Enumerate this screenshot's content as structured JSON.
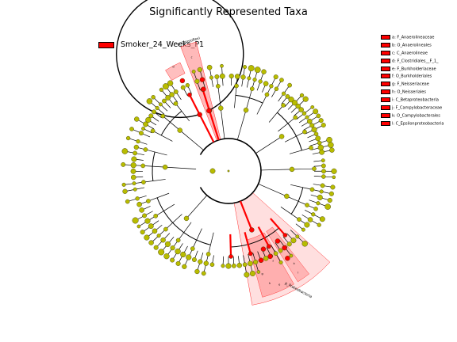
{
  "title": "Significantly Represented Taxa",
  "class_legend": {
    "label": "Smoker_24_Weeks_P1",
    "color": "#ff0000"
  },
  "colors": {
    "node_nonsig": "#b8bc00",
    "node_sig": "#ff0000",
    "highlight": "#ff8080",
    "edge": "#000000"
  },
  "biomarkers": [
    {
      "key": "a",
      "label": "a: F_Anaerolineaceae"
    },
    {
      "key": "b",
      "label": "b: O_Anaerolineales"
    },
    {
      "key": "c",
      "label": "c: C_Anaerolineae"
    },
    {
      "key": "d",
      "label": "d: F_Clostridiales__F_1_"
    },
    {
      "key": "e",
      "label": "e: F_Burkholderiaceae"
    },
    {
      "key": "f",
      "label": "f: O_Burkholderiales"
    },
    {
      "key": "g",
      "label": "g: F_Neisseriaceae"
    },
    {
      "key": "h",
      "label": "h: O_Neisseriales"
    },
    {
      "key": "i",
      "label": "i: C_Betaproteobacteria"
    },
    {
      "key": "j",
      "label": "j: F_Campylobacteraceae"
    },
    {
      "key": "k",
      "label": "k: O_Campylobacterales"
    },
    {
      "key": "l",
      "label": "l: C_Epsilonproteobacteria"
    }
  ],
  "clade_labels": {
    "chloroflexi": "p_Chloroflexi",
    "proteobacteria": "p_Proteobacteria"
  }
}
